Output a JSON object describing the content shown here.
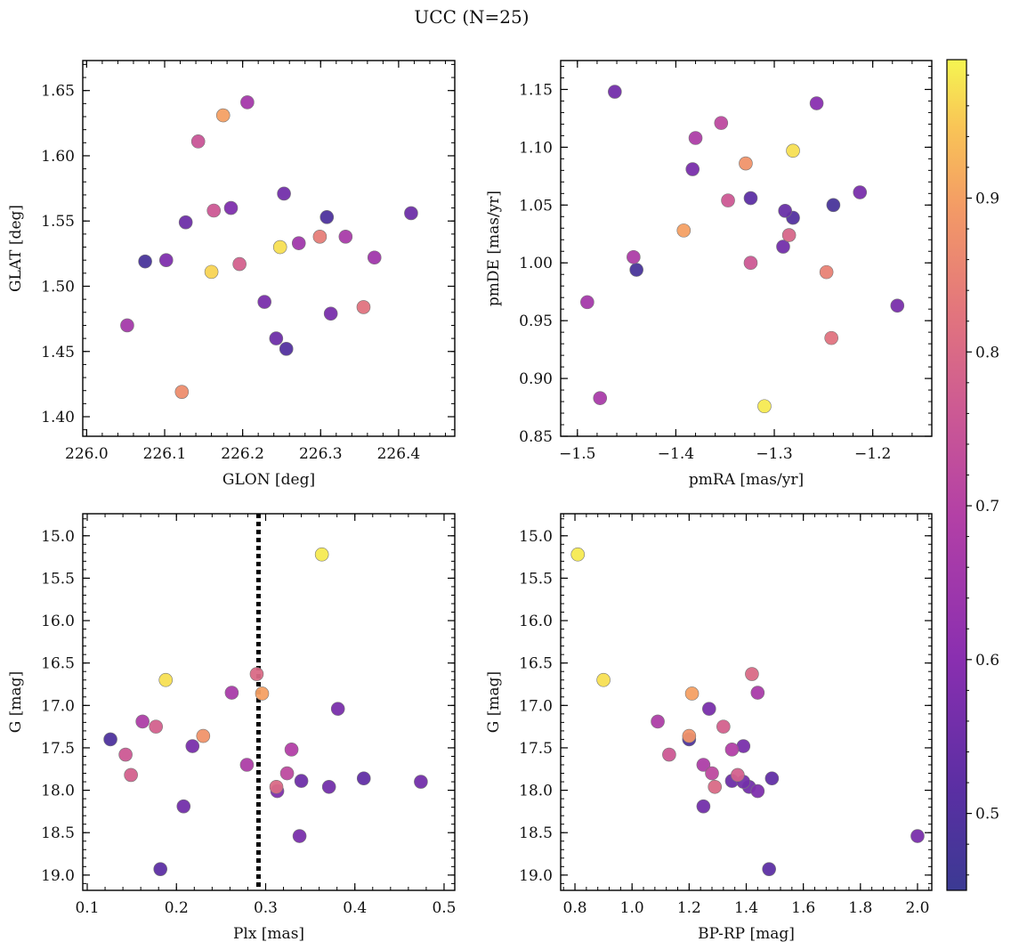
{
  "figure": {
    "title": "UCC (N=25)"
  },
  "colormap": {
    "name": "plasma",
    "range": [
      0.45,
      0.99
    ],
    "ticks": [
      "0.5",
      "0.6",
      "0.7",
      "0.8",
      "0.9"
    ],
    "tick_values": [
      0.5,
      0.6,
      0.7,
      0.8,
      0.9
    ]
  },
  "chart_data": [
    {
      "type": "scatter",
      "title": "",
      "xlabel": "GLON [deg]",
      "ylabel": "GLAT [deg]",
      "xlim": [
        225.995,
        226.472
      ],
      "ylim": [
        1.385,
        1.673
      ],
      "xticks": [
        226.0,
        226.1,
        226.2,
        226.3,
        226.4
      ],
      "xtick_labels": [
        "226.0",
        "226.1",
        "226.2",
        "226.3",
        "226.4"
      ],
      "yticks": [
        1.4,
        1.45,
        1.5,
        1.55,
        1.6,
        1.65
      ],
      "ytick_labels": [
        "1.40",
        "1.45",
        "1.50",
        "1.55",
        "1.60",
        "1.65"
      ],
      "invert_y": false,
      "points": [
        {
          "x": 226.416,
          "y": 1.556,
          "c": 0.55
        },
        {
          "x": 226.075,
          "y": 1.519,
          "c": 0.48
        },
        {
          "x": 226.308,
          "y": 1.553,
          "c": 0.49
        },
        {
          "x": 226.256,
          "y": 1.452,
          "c": 0.5
        },
        {
          "x": 226.313,
          "y": 1.479,
          "c": 0.57
        },
        {
          "x": 226.102,
          "y": 1.52,
          "c": 0.58
        },
        {
          "x": 226.127,
          "y": 1.549,
          "c": 0.55
        },
        {
          "x": 226.185,
          "y": 1.56,
          "c": 0.58
        },
        {
          "x": 226.253,
          "y": 1.571,
          "c": 0.56
        },
        {
          "x": 226.243,
          "y": 1.46,
          "c": 0.55
        },
        {
          "x": 226.228,
          "y": 1.488,
          "c": 0.57
        },
        {
          "x": 226.052,
          "y": 1.47,
          "c": 0.66
        },
        {
          "x": 226.206,
          "y": 1.641,
          "c": 0.66
        },
        {
          "x": 226.272,
          "y": 1.533,
          "c": 0.65
        },
        {
          "x": 226.332,
          "y": 1.538,
          "c": 0.67
        },
        {
          "x": 226.369,
          "y": 1.522,
          "c": 0.65
        },
        {
          "x": 226.143,
          "y": 1.611,
          "c": 0.75
        },
        {
          "x": 226.163,
          "y": 1.558,
          "c": 0.76
        },
        {
          "x": 226.196,
          "y": 1.517,
          "c": 0.78
        },
        {
          "x": 226.355,
          "y": 1.484,
          "c": 0.82
        },
        {
          "x": 226.299,
          "y": 1.538,
          "c": 0.84
        },
        {
          "x": 226.122,
          "y": 1.419,
          "c": 0.87
        },
        {
          "x": 226.175,
          "y": 1.631,
          "c": 0.9
        },
        {
          "x": 226.16,
          "y": 1.511,
          "c": 0.96
        },
        {
          "x": 226.248,
          "y": 1.53,
          "c": 0.97
        }
      ]
    },
    {
      "type": "scatter",
      "title": "",
      "xlabel": "pmRA [mas/yr]",
      "ylabel": "pmDE [mas/yr]",
      "xlim": [
        -1.517,
        -1.14
      ],
      "ylim": [
        0.85,
        1.175
      ],
      "xticks": [
        -1.5,
        -1.4,
        -1.3,
        -1.2
      ],
      "xtick_labels": [
        "−1.5",
        "−1.4",
        "−1.3",
        "−1.2"
      ],
      "yticks": [
        0.85,
        0.9,
        0.95,
        1.0,
        1.05,
        1.1,
        1.15
      ],
      "ytick_labels": [
        "0.85",
        "0.90",
        "0.95",
        "1.00",
        "1.05",
        "1.10",
        "1.15"
      ],
      "invert_y": false,
      "points": [
        {
          "x": -1.462,
          "y": 1.148,
          "c": 0.56
        },
        {
          "x": -1.257,
          "y": 1.138,
          "c": 0.6
        },
        {
          "x": -1.383,
          "y": 1.081,
          "c": 0.57
        },
        {
          "x": -1.324,
          "y": 1.056,
          "c": 0.52
        },
        {
          "x": -1.289,
          "y": 1.045,
          "c": 0.54
        },
        {
          "x": -1.281,
          "y": 1.039,
          "c": 0.5
        },
        {
          "x": -1.24,
          "y": 1.05,
          "c": 0.48
        },
        {
          "x": -1.213,
          "y": 1.061,
          "c": 0.57
        },
        {
          "x": -1.291,
          "y": 1.014,
          "c": 0.56
        },
        {
          "x": -1.44,
          "y": 0.994,
          "c": 0.48
        },
        {
          "x": -1.175,
          "y": 0.963,
          "c": 0.57
        },
        {
          "x": -1.49,
          "y": 0.966,
          "c": 0.66
        },
        {
          "x": -1.477,
          "y": 0.883,
          "c": 0.67
        },
        {
          "x": -1.443,
          "y": 1.005,
          "c": 0.68
        },
        {
          "x": -1.38,
          "y": 1.108,
          "c": 0.68
        },
        {
          "x": -1.354,
          "y": 1.121,
          "c": 0.72
        },
        {
          "x": -1.347,
          "y": 1.054,
          "c": 0.76
        },
        {
          "x": -1.324,
          "y": 1.0,
          "c": 0.76
        },
        {
          "x": -1.285,
          "y": 1.024,
          "c": 0.79
        },
        {
          "x": -1.242,
          "y": 0.935,
          "c": 0.82
        },
        {
          "x": -1.247,
          "y": 0.992,
          "c": 0.85
        },
        {
          "x": -1.329,
          "y": 1.086,
          "c": 0.88
        },
        {
          "x": -1.392,
          "y": 1.028,
          "c": 0.9
        },
        {
          "x": -1.281,
          "y": 1.097,
          "c": 0.97
        },
        {
          "x": -1.31,
          "y": 0.876,
          "c": 0.98
        }
      ]
    },
    {
      "type": "scatter",
      "title": "",
      "xlabel": "Plx [mas]",
      "ylabel": "G [mag]",
      "xlim": [
        0.095,
        0.512
      ],
      "ylim": [
        15.2,
        19.2
      ],
      "xticks": [
        0.1,
        0.2,
        0.3,
        0.4,
        0.5
      ],
      "xtick_labels": [
        "0.1",
        "0.2",
        "0.3",
        "0.4",
        "0.5"
      ],
      "yticks": [
        15.0,
        15.5,
        16.0,
        16.5,
        17.0,
        17.5,
        18.0,
        18.5,
        19.0
      ],
      "ytick_labels": [
        "15.0",
        "15.5",
        "16.0",
        "16.5",
        "17.0",
        "17.5",
        "18.0",
        "18.5",
        "19.0"
      ],
      "invert_y": true,
      "plot_ylim": [
        14.74,
        19.18
      ],
      "vline": {
        "x": 0.292,
        "style": "dotted"
      },
      "points": [
        {
          "x": 0.126,
          "y": 17.4,
          "c": 0.49
        },
        {
          "x": 0.182,
          "y": 18.93,
          "c": 0.52
        },
        {
          "x": 0.208,
          "y": 18.19,
          "c": 0.56
        },
        {
          "x": 0.218,
          "y": 17.48,
          "c": 0.57
        },
        {
          "x": 0.313,
          "y": 18.01,
          "c": 0.58
        },
        {
          "x": 0.338,
          "y": 18.54,
          "c": 0.57
        },
        {
          "x": 0.34,
          "y": 17.89,
          "c": 0.55
        },
        {
          "x": 0.371,
          "y": 17.96,
          "c": 0.56
        },
        {
          "x": 0.381,
          "y": 17.04,
          "c": 0.57
        },
        {
          "x": 0.41,
          "y": 17.86,
          "c": 0.53
        },
        {
          "x": 0.474,
          "y": 17.9,
          "c": 0.56
        },
        {
          "x": 0.162,
          "y": 17.19,
          "c": 0.68
        },
        {
          "x": 0.262,
          "y": 16.85,
          "c": 0.67
        },
        {
          "x": 0.279,
          "y": 17.7,
          "c": 0.68
        },
        {
          "x": 0.329,
          "y": 17.52,
          "c": 0.69
        },
        {
          "x": 0.324,
          "y": 17.8,
          "c": 0.72
        },
        {
          "x": 0.143,
          "y": 17.58,
          "c": 0.76
        },
        {
          "x": 0.149,
          "y": 17.82,
          "c": 0.78
        },
        {
          "x": 0.177,
          "y": 17.25,
          "c": 0.78
        },
        {
          "x": 0.29,
          "y": 16.63,
          "c": 0.8
        },
        {
          "x": 0.312,
          "y": 17.96,
          "c": 0.8
        },
        {
          "x": 0.23,
          "y": 17.36,
          "c": 0.88
        },
        {
          "x": 0.296,
          "y": 16.86,
          "c": 0.9
        },
        {
          "x": 0.188,
          "y": 16.7,
          "c": 0.97
        },
        {
          "x": 0.363,
          "y": 15.22,
          "c": 0.98
        }
      ]
    },
    {
      "type": "scatter",
      "title": "",
      "xlabel": "BP-RP [mag]",
      "ylabel": "G [mag]",
      "xlim": [
        0.75,
        2.05
      ],
      "ylim": [
        15.2,
        19.2
      ],
      "xticks": [
        0.8,
        1.0,
        1.2,
        1.4,
        1.6,
        1.8,
        2.0
      ],
      "xtick_labels": [
        "0.8",
        "1.0",
        "1.2",
        "1.4",
        "1.6",
        "1.8",
        "2.0"
      ],
      "yticks": [
        15.0,
        15.5,
        16.0,
        16.5,
        17.0,
        17.5,
        18.0,
        18.5,
        19.0
      ],
      "ytick_labels": [
        "15.0",
        "15.5",
        "16.0",
        "16.5",
        "17.0",
        "17.5",
        "18.0",
        "18.5",
        "19.0"
      ],
      "invert_y": true,
      "plot_ylim": [
        14.74,
        19.18
      ],
      "points": [
        {
          "x": 2.0,
          "y": 18.54,
          "c": 0.57
        },
        {
          "x": 1.48,
          "y": 18.93,
          "c": 0.52
        },
        {
          "x": 1.49,
          "y": 17.86,
          "c": 0.53
        },
        {
          "x": 1.44,
          "y": 18.01,
          "c": 0.58
        },
        {
          "x": 1.41,
          "y": 17.96,
          "c": 0.56
        },
        {
          "x": 1.39,
          "y": 17.9,
          "c": 0.56
        },
        {
          "x": 1.35,
          "y": 17.89,
          "c": 0.55
        },
        {
          "x": 1.39,
          "y": 17.48,
          "c": 0.57
        },
        {
          "x": 1.27,
          "y": 17.04,
          "c": 0.57
        },
        {
          "x": 1.25,
          "y": 18.19,
          "c": 0.56
        },
        {
          "x": 1.2,
          "y": 17.4,
          "c": 0.49
        },
        {
          "x": 1.44,
          "y": 16.85,
          "c": 0.67
        },
        {
          "x": 1.09,
          "y": 17.19,
          "c": 0.68
        },
        {
          "x": 1.25,
          "y": 17.7,
          "c": 0.68
        },
        {
          "x": 1.35,
          "y": 17.52,
          "c": 0.69
        },
        {
          "x": 1.28,
          "y": 17.8,
          "c": 0.72
        },
        {
          "x": 1.13,
          "y": 17.58,
          "c": 0.76
        },
        {
          "x": 1.37,
          "y": 17.82,
          "c": 0.78
        },
        {
          "x": 1.42,
          "y": 16.63,
          "c": 0.8
        },
        {
          "x": 1.29,
          "y": 17.96,
          "c": 0.8
        },
        {
          "x": 1.32,
          "y": 17.25,
          "c": 0.78
        },
        {
          "x": 1.2,
          "y": 17.36,
          "c": 0.88
        },
        {
          "x": 1.21,
          "y": 16.86,
          "c": 0.9
        },
        {
          "x": 0.9,
          "y": 16.7,
          "c": 0.97
        },
        {
          "x": 0.81,
          "y": 15.22,
          "c": 0.98
        }
      ]
    }
  ]
}
